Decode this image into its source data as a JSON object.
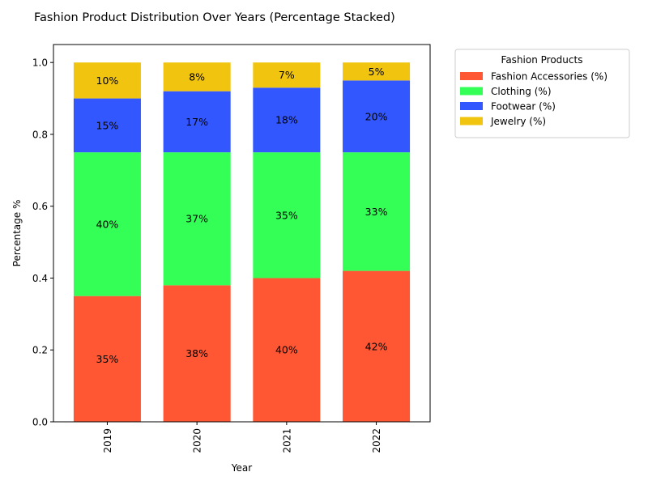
{
  "chart_data": {
    "type": "bar",
    "stacked": true,
    "title": "Fashion Product Distribution Over Years (Percentage Stacked)",
    "xlabel": "Year",
    "ylabel": "Percentage %",
    "categories": [
      "2019",
      "2020",
      "2021",
      "2022"
    ],
    "ylim": [
      0,
      1.05
    ],
    "yticks": [
      "0.0",
      "0.2",
      "0.4",
      "0.6",
      "0.8",
      "1.0"
    ],
    "ytick_values": [
      0,
      0.2,
      0.4,
      0.6,
      0.8,
      1.0
    ],
    "grid": false,
    "legend": {
      "title": "Fashion Products",
      "placement": "outside-top-right"
    },
    "series": [
      {
        "name": "Fashion Accessories (%)",
        "color": "#ff5733",
        "values": [
          0.35,
          0.38,
          0.4,
          0.42
        ],
        "labels": [
          "35%",
          "38%",
          "40%",
          "42%"
        ]
      },
      {
        "name": "Clothing (%)",
        "color": "#33ff57",
        "values": [
          0.4,
          0.37,
          0.35,
          0.33
        ],
        "labels": [
          "40%",
          "37%",
          "35%",
          "33%"
        ]
      },
      {
        "name": "Footwear (%)",
        "color": "#3357ff",
        "values": [
          0.15,
          0.17,
          0.18,
          0.2
        ],
        "labels": [
          "15%",
          "17%",
          "18%",
          "20%"
        ]
      },
      {
        "name": "Jewelry (%)",
        "color": "#f1c40f",
        "values": [
          0.1,
          0.08,
          0.07,
          0.05
        ],
        "labels": [
          "10%",
          "8%",
          "7%",
          "5%"
        ]
      }
    ]
  }
}
